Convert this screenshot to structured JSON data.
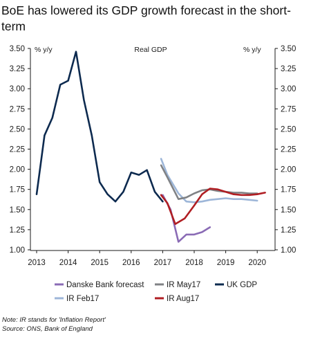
{
  "title": "BoE has lowered its GDP growth forecast in the short-term",
  "notes": {
    "note": "Note: IR stands for 'Inflation Report'",
    "source": "Source: ONS, Bank of England"
  },
  "chart_data": {
    "type": "line",
    "title": "Real GDP",
    "ylabel_left": "% y/y",
    "ylabel_right": "% y/y",
    "ylim": [
      1.0,
      3.5
    ],
    "yticks": [
      "1.00",
      "1.25",
      "1.50",
      "1.75",
      "2.00",
      "2.25",
      "2.50",
      "2.75",
      "3.00",
      "3.25",
      "3.50"
    ],
    "xlim": [
      2013,
      2020.25
    ],
    "xticks": [
      "2013",
      "2014",
      "2015",
      "2016",
      "2017",
      "2018",
      "2019",
      "2020"
    ],
    "grid": false,
    "legend_placement": "bottom",
    "series": [
      {
        "name": "Danske Bank forecast",
        "color": "#8a6bb5",
        "x": [
          2017.0,
          2017.25,
          2017.5,
          2017.75,
          2018.0,
          2018.25,
          2018.5
        ],
        "y": [
          1.68,
          1.5,
          1.1,
          1.19,
          1.19,
          1.22,
          1.28
        ]
      },
      {
        "name": "IR May17",
        "color": "#808285",
        "x": [
          2016.95,
          2017.15,
          2017.5,
          2017.75,
          2018.0,
          2018.25,
          2018.5,
          2018.75,
          2019.0,
          2019.25,
          2019.5,
          2019.75,
          2020.0
        ],
        "y": [
          2.05,
          1.9,
          1.63,
          1.65,
          1.7,
          1.74,
          1.75,
          1.73,
          1.72,
          1.71,
          1.71,
          1.7,
          1.7
        ]
      },
      {
        "name": "UK GDP",
        "color": "#0d2a4f",
        "x": [
          2013.0,
          2013.25,
          2013.5,
          2013.75,
          2014.0,
          2014.25,
          2014.5,
          2014.75,
          2015.0,
          2015.25,
          2015.5,
          2015.75,
          2016.0,
          2016.25,
          2016.5,
          2016.75,
          2017.0
        ],
        "y": [
          1.69,
          2.42,
          2.64,
          3.05,
          3.1,
          3.46,
          2.86,
          2.42,
          1.84,
          1.69,
          1.6,
          1.72,
          1.96,
          1.93,
          1.99,
          1.72,
          1.6
        ]
      },
      {
        "name": "IR Feb17",
        "color": "#9db6d8",
        "x": [
          2016.95,
          2017.15,
          2017.5,
          2017.75,
          2018.0,
          2018.25,
          2018.5,
          2018.75,
          2019.0,
          2019.25,
          2019.5,
          2019.75,
          2020.0
        ],
        "y": [
          2.13,
          1.93,
          1.7,
          1.6,
          1.59,
          1.6,
          1.62,
          1.63,
          1.64,
          1.63,
          1.63,
          1.62,
          1.61
        ]
      },
      {
        "name": "IR Aug17",
        "color": "#b01e23",
        "x": [
          2016.95,
          2017.15,
          2017.4,
          2017.7,
          2018.0,
          2018.25,
          2018.5,
          2018.75,
          2019.0,
          2019.25,
          2019.5,
          2019.75,
          2020.0,
          2020.25
        ],
        "y": [
          1.68,
          1.58,
          1.32,
          1.39,
          1.55,
          1.69,
          1.76,
          1.75,
          1.72,
          1.69,
          1.68,
          1.68,
          1.69,
          1.71
        ]
      }
    ]
  }
}
